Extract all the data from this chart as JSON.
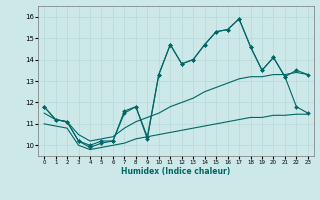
{
  "xlabel": "Humidex (Indice chaleur)",
  "background_color": "#cce8e8",
  "grid_color": "#b8d8d8",
  "line_color": "#006666",
  "x_ticks": [
    0,
    1,
    2,
    3,
    4,
    5,
    6,
    7,
    8,
    9,
    10,
    11,
    12,
    13,
    14,
    15,
    16,
    17,
    18,
    19,
    20,
    21,
    22,
    23
  ],
  "y_ticks": [
    10,
    11,
    12,
    13,
    14,
    15,
    16
  ],
  "xlim": [
    -0.5,
    23.5
  ],
  "ylim": [
    9.5,
    16.5
  ],
  "series1_x": [
    0,
    1,
    2,
    3,
    4,
    5,
    6,
    7,
    8,
    9,
    10,
    11,
    12,
    13,
    14,
    15,
    16,
    17,
    18,
    19,
    20,
    21,
    22,
    23
  ],
  "series1_y": [
    11.8,
    11.2,
    11.1,
    10.2,
    10.0,
    10.2,
    10.2,
    11.6,
    11.8,
    10.4,
    13.3,
    14.7,
    13.8,
    14.0,
    14.7,
    15.3,
    15.4,
    15.9,
    14.6,
    13.5,
    14.1,
    13.2,
    11.8,
    11.5
  ],
  "series2_x": [
    0,
    1,
    2,
    3,
    4,
    5,
    6,
    7,
    8,
    9,
    10,
    11,
    12,
    13,
    14,
    15,
    16,
    17,
    18,
    19,
    20,
    21,
    22,
    23
  ],
  "series2_y": [
    11.8,
    11.2,
    11.1,
    10.2,
    9.9,
    10.1,
    10.2,
    11.5,
    11.8,
    10.3,
    13.3,
    14.7,
    13.8,
    14.0,
    14.7,
    15.3,
    15.4,
    15.9,
    14.6,
    13.5,
    14.1,
    13.2,
    13.5,
    13.3
  ],
  "series3_x": [
    0,
    1,
    2,
    3,
    4,
    5,
    6,
    7,
    8,
    9,
    10,
    11,
    12,
    13,
    14,
    15,
    16,
    17,
    18,
    19,
    20,
    21,
    22,
    23
  ],
  "series3_y": [
    11.5,
    11.2,
    11.1,
    10.5,
    10.2,
    10.3,
    10.4,
    10.8,
    11.1,
    11.3,
    11.5,
    11.8,
    12.0,
    12.2,
    12.5,
    12.7,
    12.9,
    13.1,
    13.2,
    13.2,
    13.3,
    13.3,
    13.4,
    13.3
  ],
  "series4_x": [
    0,
    1,
    2,
    3,
    4,
    5,
    6,
    7,
    8,
    9,
    10,
    11,
    12,
    13,
    14,
    15,
    16,
    17,
    18,
    19,
    20,
    21,
    22,
    23
  ],
  "series4_y": [
    11.0,
    10.9,
    10.8,
    10.0,
    9.8,
    9.9,
    10.0,
    10.1,
    10.3,
    10.4,
    10.5,
    10.6,
    10.7,
    10.8,
    10.9,
    11.0,
    11.1,
    11.2,
    11.3,
    11.3,
    11.4,
    11.4,
    11.45,
    11.45
  ]
}
